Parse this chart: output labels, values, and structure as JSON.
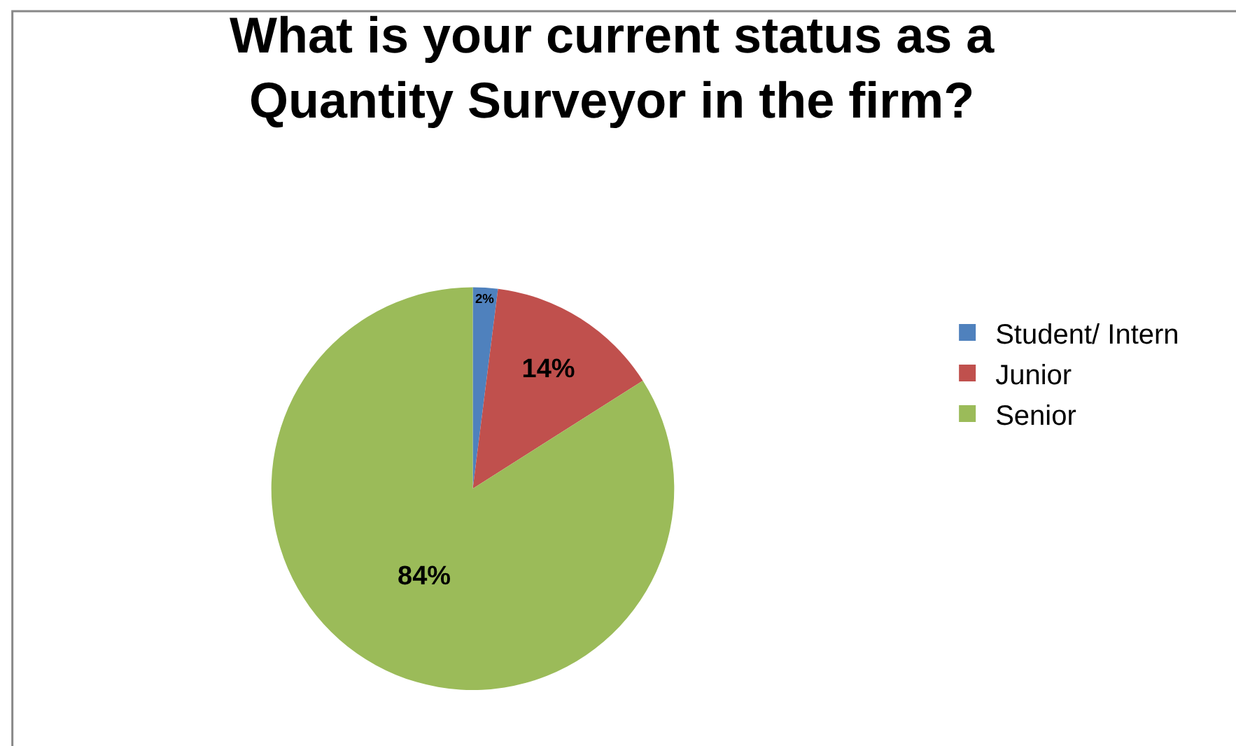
{
  "chart_data": {
    "type": "pie",
    "title": "What is your current status as a Quantity Surveyor in the firm?",
    "categories": [
      "Student/ Intern",
      "Junior",
      "Senior"
    ],
    "values": [
      2,
      14,
      84
    ],
    "colors": [
      "#4f81bd",
      "#c0504d",
      "#9bbb59"
    ],
    "value_labels": [
      "2%",
      "14%",
      "84%"
    ],
    "legend": "right"
  }
}
